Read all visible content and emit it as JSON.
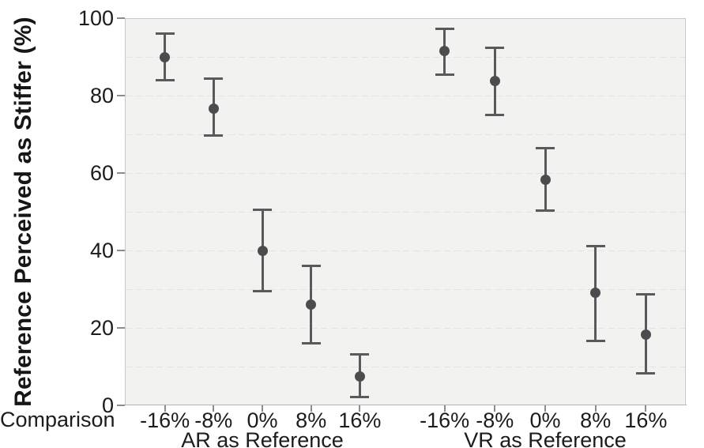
{
  "chart_data": {
    "type": "scatter",
    "title": "",
    "ylabel": "Reference Perceived as Stiffer (%)",
    "xlabel": "Comparison",
    "ylim": [
      0,
      100
    ],
    "yticks": [
      0,
      20,
      40,
      60,
      80,
      100
    ],
    "gridline_step": 10,
    "grid": "dashed-horizontal",
    "legend": "none",
    "marker": "circle-with-error-bars",
    "colors": {
      "point": "#4c4c4e",
      "error_bar": "#5a5a5c",
      "panel_background": "#f2f2f0",
      "gridline": "#e2e2de",
      "text": "#1c1c1c"
    },
    "groups": [
      {
        "label": "AR as Reference",
        "categories": [
          "-16%",
          "-8%",
          "0%",
          "8%",
          "16%"
        ],
        "series": [
          {
            "category": "-16%",
            "mean": 90.0,
            "ci_low": 84.0,
            "ci_high": 96.0
          },
          {
            "category": "-8%",
            "mean": 76.7,
            "ci_low": 69.7,
            "ci_high": 84.3
          },
          {
            "category": "0%",
            "mean": 39.8,
            "ci_low": 29.4,
            "ci_high": 50.5
          },
          {
            "category": "8%",
            "mean": 26.0,
            "ci_low": 16.0,
            "ci_high": 36.0
          },
          {
            "category": "16%",
            "mean": 7.4,
            "ci_low": 2.1,
            "ci_high": 13.2
          }
        ]
      },
      {
        "label": "VR as Reference",
        "categories": [
          "-16%",
          "-8%",
          "0%",
          "8%",
          "16%"
        ],
        "series": [
          {
            "category": "-16%",
            "mean": 91.5,
            "ci_low": 85.5,
            "ci_high": 97.3
          },
          {
            "category": "-8%",
            "mean": 83.7,
            "ci_low": 74.9,
            "ci_high": 92.4
          },
          {
            "category": "0%",
            "mean": 58.2,
            "ci_low": 50.4,
            "ci_high": 66.4
          },
          {
            "category": "8%",
            "mean": 29.0,
            "ci_low": 16.6,
            "ci_high": 41.2
          },
          {
            "category": "16%",
            "mean": 18.2,
            "ci_low": 8.2,
            "ci_high": 28.6
          }
        ]
      }
    ]
  }
}
